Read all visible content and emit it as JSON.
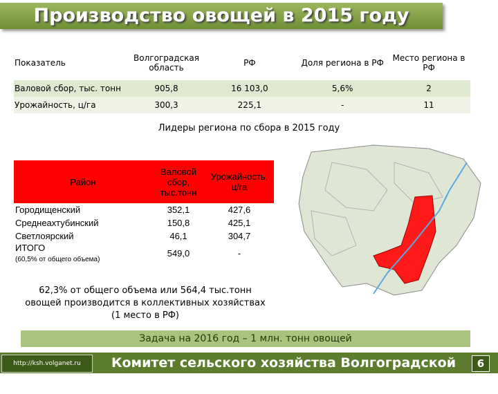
{
  "title": "Производство овощей в 2015 году",
  "table1": {
    "headers": [
      "Показатель",
      "Волгоградская область",
      "РФ",
      "Доля региона в РФ",
      "Место региона в РФ"
    ],
    "rows": [
      [
        "Валовой сбор, тыс. тонн",
        "905,8",
        "16 103,0",
        "5,6%",
        "2"
      ],
      [
        "Урожайность, ц/га",
        "300,3",
        "225,1",
        "-",
        "11"
      ]
    ]
  },
  "subtitle": "Лидеры региона по сбора в 2015 году",
  "table2": {
    "headers": [
      "Район",
      "Валовой сбор, тыс.тонн",
      "Урожайность, ц/га"
    ],
    "rows": [
      [
        "Городищенский",
        "352,1",
        "427,6"
      ],
      [
        "Среднеахтубинский",
        "150,8",
        "425,1"
      ],
      [
        "Светлоярский",
        "46,1",
        "304,7"
      ],
      [
        "ИТОГО",
        "549,0",
        "-"
      ]
    ],
    "note": "(60,5% от общего объема)"
  },
  "note": "62,3% от общего объема или 564,4 тыс.тонн овощей производится в коллективных хозяйствах (1 место в РФ)",
  "banner": "Задача на 2016 год – 1 млн. тонн овощей",
  "footer": {
    "url": "http://ksh.volganet.ru",
    "organization": "Комитет сельского хозяйства Волгоградской области",
    "page": "6"
  }
}
